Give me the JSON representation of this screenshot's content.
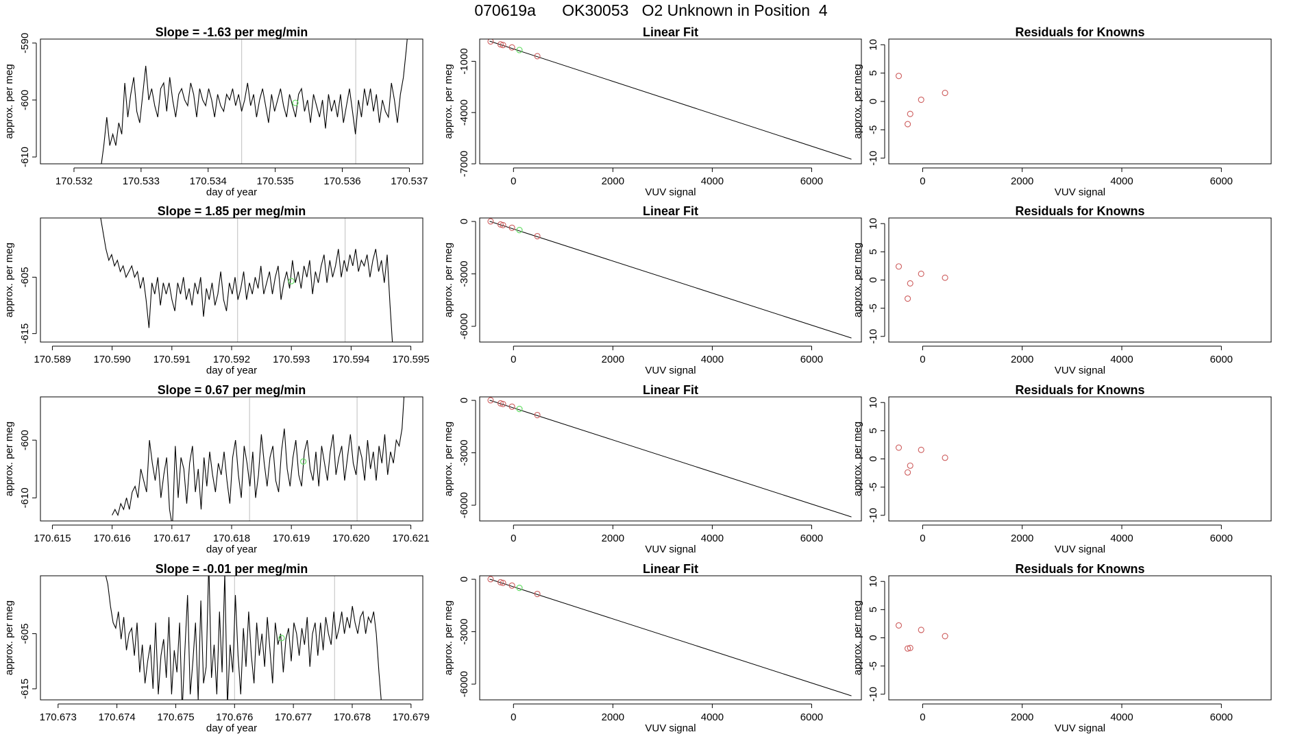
{
  "figure_title": {
    "run": "070619a",
    "tank": "OK30053",
    "description": "O2 Unknown in Position  4"
  },
  "colors": {
    "line": "#000000",
    "known_point": "#cd5c5c",
    "unknown_point": "#66dd66",
    "vline": "#bebebe",
    "axis": "#000000"
  },
  "chart_data": [
    {
      "row": 1,
      "panel": "time-series",
      "type": "line",
      "title": "Slope =  -1.63  per meg/min",
      "xlabel": "day of year",
      "ylabel": "approx. per meg",
      "xlim": [
        170.5315,
        170.5372
      ],
      "ylim": [
        -611.2,
        -589.3
      ],
      "xticks": [
        170.532,
        170.533,
        170.534,
        170.535,
        170.536,
        170.537
      ],
      "xtick_labels": [
        "170.532",
        "170.533",
        "170.534",
        "170.535",
        "170.536",
        "170.537"
      ],
      "yticks": [
        -590,
        -600,
        -610
      ],
      "ytick_labels": [
        "-590",
        "-600",
        "-610"
      ],
      "series_start_x": 170.5324,
      "series_end_x": 170.537,
      "series_y": [
        -612,
        -608,
        -603,
        -608,
        -606,
        -608,
        -604,
        -606,
        -597,
        -603,
        -599,
        -596,
        -602,
        -604,
        -599,
        -594,
        -600,
        -598,
        -601,
        -603,
        -598,
        -597,
        -602,
        -596,
        -600,
        -603,
        -599,
        -598,
        -600,
        -601,
        -597,
        -599,
        -603,
        -598,
        -600,
        -601,
        -598,
        -600,
        -603,
        -599,
        -601,
        -602,
        -599,
        -600,
        -598,
        -601,
        -599,
        -602,
        -600,
        -597,
        -601,
        -599,
        -603,
        -600,
        -598,
        -601,
        -604,
        -599,
        -602,
        -600,
        -598,
        -601,
        -603,
        -599,
        -601,
        -603,
        -599,
        -598,
        -602,
        -600,
        -604,
        -599,
        -601,
        -603,
        -600,
        -605,
        -599,
        -602,
        -600,
        -603,
        -599,
        -604,
        -601,
        -598,
        -602,
        -606,
        -600,
        -603,
        -598,
        -601,
        -598,
        -602,
        -599,
        -604,
        -600,
        -602,
        -603,
        -597,
        -600,
        -604,
        -599,
        -596,
        -591,
        -585
      ],
      "vlines": [
        170.5345,
        170.5362
      ],
      "unknown_point": [
        170.5353,
        -600.5
      ]
    },
    {
      "row": 1,
      "panel": "linear-fit",
      "type": "scatter",
      "title": "Linear Fit",
      "xlabel": "VUV signal",
      "ylabel": "approx. per meg",
      "xlim": [
        -680,
        7000
      ],
      "ylim": [
        -7000,
        300
      ],
      "xticks": [
        0,
        2000,
        4000,
        6000
      ],
      "xtick_labels": [
        "0",
        "2000",
        "4000",
        "6000"
      ],
      "yticks": [
        -1000,
        -4000,
        -7000
      ],
      "ytick_labels": [
        "-1000",
        "-4000",
        "-7000"
      ],
      "fit_line": [
        [
          -480,
          180
        ],
        [
          6800,
          -6730
        ]
      ],
      "known_points": [
        [
          -460,
          160
        ],
        [
          -260,
          -10
        ],
        [
          -210,
          -50
        ],
        [
          -30,
          -190
        ],
        [
          480,
          -700
        ]
      ],
      "unknown_points": [
        [
          120,
          -340
        ]
      ]
    },
    {
      "row": 1,
      "panel": "residuals",
      "type": "scatter",
      "title": "Residuals for Knowns",
      "xlabel": "VUV signal",
      "ylabel": "approx. per meg",
      "xlim": [
        -680,
        7000
      ],
      "ylim": [
        -11,
        11
      ],
      "xticks": [
        0,
        2000,
        4000,
        6000
      ],
      "xtick_labels": [
        "0",
        "2000",
        "4000",
        "6000"
      ],
      "yticks": [
        10,
        5,
        0,
        -5,
        -10
      ],
      "ytick_labels": [
        "10",
        "5",
        "0",
        "-5",
        "-10"
      ],
      "known_points": [
        [
          -480,
          4.5
        ],
        [
          -300,
          -4.0
        ],
        [
          -250,
          -2.2
        ],
        [
          -30,
          0.3
        ],
        [
          450,
          1.5
        ]
      ]
    },
    {
      "row": 2,
      "panel": "time-series",
      "type": "line",
      "title": "Slope =  1.85  per meg/min",
      "xlabel": "day of year",
      "ylabel": "approx. per meg",
      "xlim": [
        170.5888,
        170.5952
      ],
      "ylim": [
        -616.5,
        -594.5
      ],
      "xticks": [
        170.589,
        170.59,
        170.591,
        170.592,
        170.593,
        170.594,
        170.595
      ],
      "xtick_labels": [
        "170.589",
        "170.590",
        "170.591",
        "170.592",
        "170.593",
        "170.594",
        "170.595"
      ],
      "yticks": [
        -605,
        -615
      ],
      "ytick_labels": [
        "-605",
        "-615"
      ],
      "series_start_x": 170.5898,
      "series_end_x": 170.5947,
      "series_y": [
        -594,
        -597,
        -600,
        -602,
        -601,
        -603,
        -602,
        -604,
        -603,
        -605,
        -604,
        -603,
        -605,
        -604,
        -607,
        -605,
        -609,
        -614,
        -606,
        -608,
        -605,
        -610,
        -606,
        -608,
        -606,
        -609,
        -611,
        -606,
        -608,
        -605,
        -609,
        -607,
        -610,
        -606,
        -608,
        -605,
        -612,
        -607,
        -609,
        -606,
        -610,
        -608,
        -604,
        -609,
        -611,
        -606,
        -608,
        -605,
        -609,
        -607,
        -604,
        -609,
        -606,
        -608,
        -605,
        -607,
        -603,
        -608,
        -606,
        -604,
        -608,
        -605,
        -603,
        -609,
        -606,
        -604,
        -607,
        -602,
        -606,
        -604,
        -607,
        -603,
        -605,
        -602,
        -608,
        -604,
        -606,
        -603,
        -601,
        -606,
        -602,
        -605,
        -603,
        -600,
        -605,
        -602,
        -604,
        -601,
        -603,
        -600,
        -604,
        -602,
        -603,
        -601,
        -605,
        -602,
        -600,
        -604,
        -602,
        -606,
        -601,
        -610,
        -618
      ],
      "vlines": [
        170.5921,
        170.5939
      ],
      "unknown_point": [
        170.593,
        -605.7
      ]
    },
    {
      "row": 2,
      "panel": "linear-fit",
      "type": "scatter",
      "title": "Linear Fit",
      "xlabel": "VUV signal",
      "ylabel": "approx. per meg",
      "xlim": [
        -680,
        7000
      ],
      "ylim": [
        -6900,
        200
      ],
      "xticks": [
        0,
        2000,
        4000,
        6000
      ],
      "xtick_labels": [
        "0",
        "2000",
        "4000",
        "6000"
      ],
      "yticks": [
        0,
        -3000,
        -6000
      ],
      "ytick_labels": [
        "0",
        "-3000",
        "-6000"
      ],
      "fit_line": [
        [
          -480,
          10
        ],
        [
          6800,
          -6670
        ]
      ],
      "known_points": [
        [
          -460,
          5
        ],
        [
          -260,
          -170
        ],
        [
          -210,
          -210
        ],
        [
          -30,
          -360
        ],
        [
          480,
          -840
        ]
      ],
      "unknown_points": [
        [
          120,
          -490
        ]
      ]
    },
    {
      "row": 2,
      "panel": "residuals",
      "type": "scatter",
      "title": "Residuals for Knowns",
      "xlabel": "VUV signal",
      "ylabel": "approx. per meg",
      "xlim": [
        -680,
        7000
      ],
      "ylim": [
        -11,
        11
      ],
      "xticks": [
        0,
        2000,
        4000,
        6000
      ],
      "xtick_labels": [
        "0",
        "2000",
        "4000",
        "6000"
      ],
      "yticks": [
        10,
        5,
        0,
        -5,
        -10
      ],
      "ytick_labels": [
        "10",
        "5",
        "0",
        "-5",
        "-10"
      ],
      "known_points": [
        [
          -480,
          2.4
        ],
        [
          -300,
          -3.3
        ],
        [
          -250,
          -0.6
        ],
        [
          -30,
          1.1
        ],
        [
          450,
          0.4
        ]
      ]
    },
    {
      "row": 3,
      "panel": "time-series",
      "type": "line",
      "title": "Slope =  0.67  per meg/min",
      "xlabel": "day of year",
      "ylabel": "approx. per meg",
      "xlim": [
        170.6148,
        170.6212
      ],
      "ylim": [
        -614,
        -592.5
      ],
      "xticks": [
        170.615,
        170.616,
        170.617,
        170.618,
        170.619,
        170.62,
        170.621
      ],
      "xtick_labels": [
        "170.615",
        "170.616",
        "170.617",
        "170.618",
        "170.619",
        "170.620",
        "170.621"
      ],
      "yticks": [
        -600,
        -610
      ],
      "ytick_labels": [
        "-600",
        "-610"
      ],
      "series_start_x": 170.616,
      "series_end_x": 170.6209,
      "series_y": [
        -613,
        -612,
        -613,
        -611,
        -612,
        -610,
        -612,
        -609,
        -608,
        -610,
        -605,
        -607,
        -609,
        -600,
        -604,
        -607,
        -603,
        -610,
        -606,
        -603,
        -612,
        -615,
        -601,
        -610,
        -603,
        -605,
        -611,
        -604,
        -601,
        -609,
        -605,
        -612,
        -603,
        -608,
        -602,
        -606,
        -609,
        -604,
        -606,
        -602,
        -607,
        -611,
        -603,
        -600,
        -606,
        -610,
        -601,
        -604,
        -608,
        -602,
        -610,
        -606,
        -599,
        -604,
        -608,
        -603,
        -601,
        -607,
        -609,
        -602,
        -598,
        -605,
        -608,
        -603,
        -600,
        -606,
        -608,
        -602,
        -600,
        -605,
        -607,
        -602,
        -608,
        -601,
        -604,
        -607,
        -602,
        -599,
        -606,
        -603,
        -601,
        -607,
        -603,
        -599,
        -604,
        -606,
        -601,
        -603,
        -607,
        -600,
        -605,
        -602,
        -607,
        -601,
        -604,
        -599,
        -606,
        -602,
        -604,
        -600,
        -601,
        -598,
        -590
      ],
      "vlines": [
        170.6183,
        170.6201
      ],
      "unknown_point": [
        170.6192,
        -603.7
      ]
    },
    {
      "row": 3,
      "panel": "linear-fit",
      "type": "scatter",
      "title": "Linear Fit",
      "xlabel": "VUV signal",
      "ylabel": "approx. per meg",
      "xlim": [
        -680,
        7000
      ],
      "ylim": [
        -6900,
        200
      ],
      "xticks": [
        0,
        2000,
        4000,
        6000
      ],
      "xtick_labels": [
        "0",
        "2000",
        "4000",
        "6000"
      ],
      "yticks": [
        0,
        -3000,
        -6000
      ],
      "ytick_labels": [
        "0",
        "-3000",
        "-6000"
      ],
      "fit_line": [
        [
          -480,
          10
        ],
        [
          6800,
          -6670
        ]
      ],
      "known_points": [
        [
          -460,
          5
        ],
        [
          -260,
          -170
        ],
        [
          -210,
          -210
        ],
        [
          -30,
          -360
        ],
        [
          480,
          -840
        ]
      ],
      "unknown_points": [
        [
          120,
          -490
        ]
      ]
    },
    {
      "row": 3,
      "panel": "residuals",
      "type": "scatter",
      "title": "Residuals for Knowns",
      "xlabel": "VUV signal",
      "ylabel": "approx. per meg",
      "xlim": [
        -680,
        7000
      ],
      "ylim": [
        -11,
        11
      ],
      "xticks": [
        0,
        2000,
        4000,
        6000
      ],
      "xtick_labels": [
        "0",
        "2000",
        "4000",
        "6000"
      ],
      "yticks": [
        10,
        5,
        0,
        -5,
        -10
      ],
      "ytick_labels": [
        "10",
        "5",
        "0",
        "-5",
        "-10"
      ],
      "known_points": [
        [
          -480,
          2.0
        ],
        [
          -300,
          -2.4
        ],
        [
          -250,
          -1.2
        ],
        [
          -30,
          1.6
        ],
        [
          450,
          0.2
        ]
      ]
    },
    {
      "row": 4,
      "panel": "time-series",
      "type": "line",
      "title": "Slope =  -0.01  per meg/min",
      "xlabel": "day of year",
      "ylabel": "approx. per meg",
      "xlim": [
        170.6727,
        170.6792
      ],
      "ylim": [
        -617,
        -594.5
      ],
      "xticks": [
        170.673,
        170.674,
        170.675,
        170.676,
        170.677,
        170.678,
        170.679
      ],
      "xtick_labels": [
        "170.673",
        "170.674",
        "170.675",
        "170.676",
        "170.677",
        "170.678",
        "170.679"
      ],
      "yticks": [
        -605,
        -615
      ],
      "ytick_labels": [
        "-605",
        "-615"
      ],
      "series_start_x": 170.6738,
      "series_end_x": 170.6785,
      "series_y": [
        -594,
        -596,
        -600,
        -603,
        -604,
        -601,
        -606,
        -602,
        -608,
        -605,
        -604,
        -609,
        -603,
        -612,
        -607,
        -614,
        -610,
        -607,
        -615,
        -603,
        -616,
        -609,
        -606,
        -613,
        -602,
        -616,
        -608,
        -612,
        -603,
        -619,
        -608,
        -598,
        -616,
        -610,
        -603,
        -617,
        -599,
        -614,
        -611,
        -592,
        -613,
        -607,
        -616,
        -601,
        -612,
        -594,
        -618,
        -607,
        -612,
        -598,
        -609,
        -616,
        -604,
        -611,
        -601,
        -609,
        -614,
        -603,
        -609,
        -605,
        -611,
        -602,
        -608,
        -614,
        -603,
        -607,
        -605,
        -612,
        -606,
        -604,
        -610,
        -603,
        -605,
        -609,
        -604,
        -607,
        -602,
        -611,
        -605,
        -603,
        -609,
        -603,
        -608,
        -602,
        -605,
        -607,
        -601,
        -606,
        -604,
        -601,
        -605,
        -602,
        -604,
        -600,
        -603,
        -605,
        -602,
        -601,
        -605,
        -602,
        -603,
        -601,
        -605,
        -612,
        -618
      ],
      "vlines": [
        170.676,
        170.6777
      ],
      "unknown_point": [
        170.6768,
        -605.8
      ]
    },
    {
      "row": 4,
      "panel": "linear-fit",
      "type": "scatter",
      "title": "Linear Fit",
      "xlabel": "VUV signal",
      "ylabel": "approx. per meg",
      "xlim": [
        -680,
        7000
      ],
      "ylim": [
        -6900,
        200
      ],
      "xticks": [
        0,
        2000,
        4000,
        6000
      ],
      "xtick_labels": [
        "0",
        "2000",
        "4000",
        "6000"
      ],
      "yticks": [
        0,
        -3000,
        -6000
      ],
      "ytick_labels": [
        "0",
        "-3000",
        "-6000"
      ],
      "fit_line": [
        [
          -480,
          10
        ],
        [
          6800,
          -6670
        ]
      ],
      "known_points": [
        [
          -460,
          5
        ],
        [
          -260,
          -170
        ],
        [
          -210,
          -210
        ],
        [
          -30,
          -360
        ],
        [
          480,
          -840
        ]
      ],
      "unknown_points": [
        [
          120,
          -490
        ]
      ]
    },
    {
      "row": 4,
      "panel": "residuals",
      "type": "scatter",
      "title": "Residuals for Knowns",
      "xlabel": "VUV signal",
      "ylabel": "approx. per meg",
      "xlim": [
        -680,
        7000
      ],
      "ylim": [
        -11,
        11
      ],
      "xticks": [
        0,
        2000,
        4000,
        6000
      ],
      "xtick_labels": [
        "0",
        "2000",
        "4000",
        "6000"
      ],
      "yticks": [
        10,
        5,
        0,
        -5,
        -10
      ],
      "ytick_labels": [
        "10",
        "5",
        "0",
        "-5",
        "-10"
      ],
      "known_points": [
        [
          -480,
          2.2
        ],
        [
          -300,
          -1.9
        ],
        [
          -250,
          -1.8
        ],
        [
          -30,
          1.4
        ],
        [
          450,
          0.3
        ]
      ]
    }
  ]
}
